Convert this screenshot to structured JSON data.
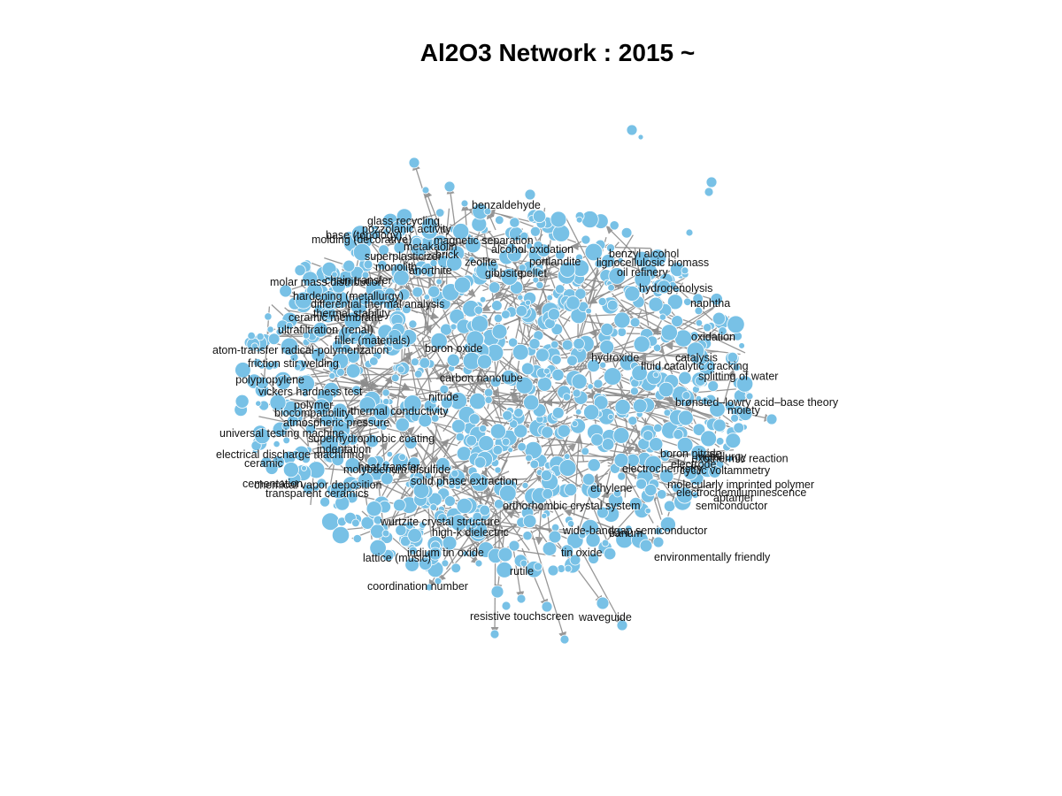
{
  "title": "Al2O3 Network : 2015 ~",
  "colors": {
    "node": "#78c1e6",
    "edge": "#8c8c8c",
    "background": "#ffffff"
  },
  "labels": [
    "benzaldehyde",
    "glass recycling",
    "pozzolanic activity",
    "base (topology)",
    "molding (decorative)",
    "magnetic separation",
    "metakaolin",
    "superplasticizer",
    "brick",
    "alcohol oxidation",
    "gibbsite",
    "pellet",
    "portlandite",
    "monolith",
    "anorthite",
    "benzyl alcohol",
    "lignocellulosic biomass",
    "oil refinery",
    "hydrogenolysis",
    "molar mass distribution",
    "chain transfer",
    "hardening (metallurgy)",
    "differential thermal analysis",
    "naphtha",
    "ceramic membrane",
    "ultrafiltration (renal)",
    "filler (materials)",
    "atom-transfer radical-polymerization",
    "friction stir welding",
    "boron oxide",
    "fluid catalytic cracking",
    "vickers hardness test",
    "polymer",
    "thermal conductivity",
    "biocompatibility",
    "atmospheric pressure",
    "universal testing machine",
    "brønsted–lowry acid–base theory",
    "moiety",
    "boron nitride",
    "superhydrophobic coating",
    "electrical discharge machining",
    "indentation",
    "ceramic",
    "cementation",
    "transparent ceramics",
    "molybdenum disulfide",
    "solid phase extraction",
    "electrode",
    "cyclic voltammetry",
    "molecularly imprinted polymer",
    "electrochemiluminescence",
    "aptamer",
    "semiconductor",
    "orthorhombic crystal system",
    "wurtzite crystal structure",
    "wide-bandgap semiconductor",
    "high-k dielectric",
    "indium tin oxide",
    "tin oxide",
    "barium",
    "environmentally friendly",
    "lattice (music)",
    "rutile",
    "coordination number",
    "resistive touchscreen",
    "waveguide",
    "nitride",
    "exothermic reaction",
    "polypropylene",
    "ethylene",
    "splitting of water",
    "chemical vapor deposition",
    "heat transfer",
    "carbon nanotube",
    "thermal stability",
    "metallurgy",
    "oxidation",
    "hydroxide",
    "zeolite",
    "catalysis",
    "electrochemistry"
  ]
}
